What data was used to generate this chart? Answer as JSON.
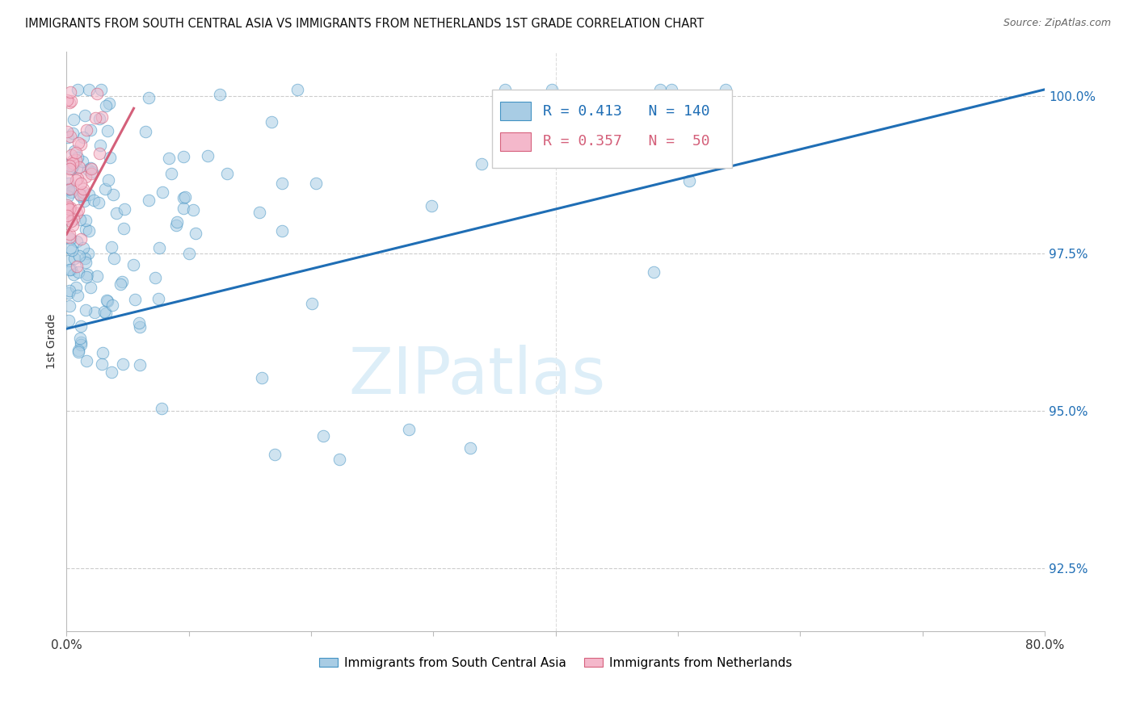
{
  "title": "IMMIGRANTS FROM SOUTH CENTRAL ASIA VS IMMIGRANTS FROM NETHERLANDS 1ST GRADE CORRELATION CHART",
  "source": "Source: ZipAtlas.com",
  "ylabel": "1st Grade",
  "legend_blue_label": "Immigrants from South Central Asia",
  "legend_pink_label": "Immigrants from Netherlands",
  "R_blue": 0.413,
  "N_blue": 140,
  "R_pink": 0.357,
  "N_pink": 50,
  "blue_color": "#a8cce4",
  "pink_color": "#f4b8cb",
  "blue_edge_color": "#4393c3",
  "pink_edge_color": "#d6617d",
  "blue_line_color": "#1f6eb5",
  "pink_line_color": "#d4607a",
  "right_ytick_vals": [
    1.0,
    0.975,
    0.95,
    0.925
  ],
  "right_ytick_labels": [
    "100.0%",
    "97.5%",
    "95.0%",
    "92.5%"
  ],
  "xlim": [
    0.0,
    0.8
  ],
  "ylim": [
    0.915,
    1.007
  ],
  "watermark_text": "ZIPatlas",
  "watermark_color": "#ddeef8",
  "blue_trend": [
    0.0,
    0.8,
    0.963,
    1.001
  ],
  "pink_trend": [
    0.0,
    0.055,
    0.978,
    0.998
  ]
}
